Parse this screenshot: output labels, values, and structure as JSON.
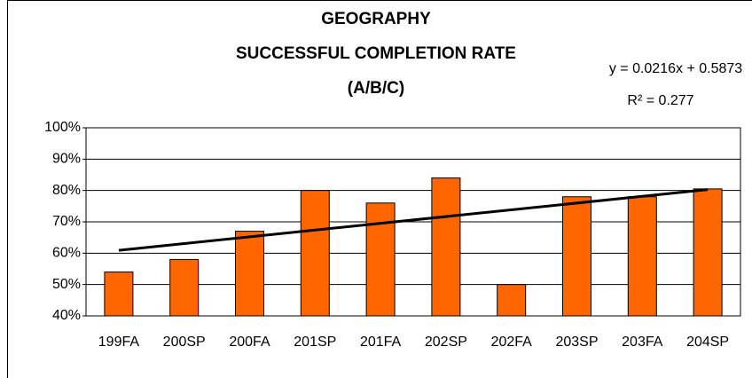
{
  "chart_data": {
    "type": "bar",
    "title": [
      "GEOGRAPHY",
      "SUCCESSFUL COMPLETION RATE",
      "(A/B/C)"
    ],
    "categories": [
      "199FA",
      "200SP",
      "200FA",
      "201SP",
      "201FA",
      "202SP",
      "202FA",
      "203SP",
      "203FA",
      "204SP"
    ],
    "values": [
      54,
      58,
      67,
      80,
      76,
      84,
      50,
      78,
      78,
      80.5
    ],
    "color": "#ff6600",
    "ylim": [
      40,
      100
    ],
    "yticks": [
      {
        "value": 40,
        "label": "40%"
      },
      {
        "value": 50,
        "label": "50%"
      },
      {
        "value": 60,
        "label": "60%"
      },
      {
        "value": 70,
        "label": "70%"
      },
      {
        "value": 80,
        "label": "80%"
      },
      {
        "value": 90,
        "label": "90%"
      },
      {
        "value": 100,
        "label": "100%"
      }
    ],
    "grid": true,
    "trendline": {
      "values": [
        60.9,
        80.3
      ],
      "color": "#000000",
      "equation": "y = 0.0216x + 0.5873",
      "r_squared": "R² = 0.277"
    }
  }
}
